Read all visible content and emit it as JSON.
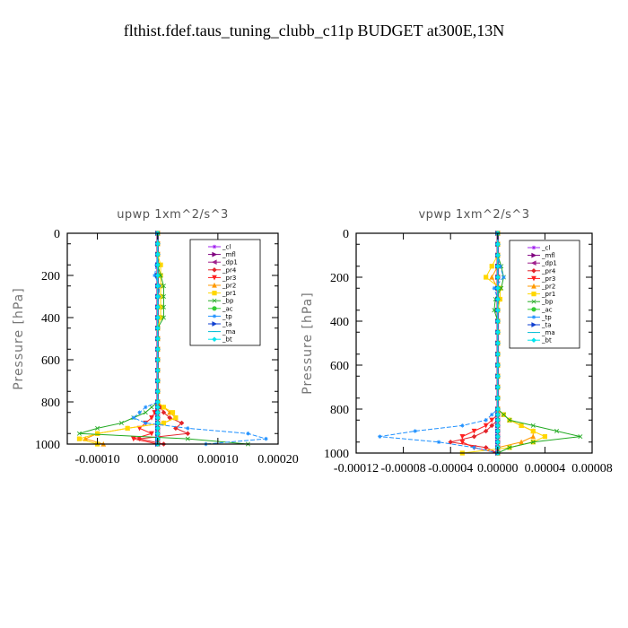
{
  "page_title": "flthist.fdef.taus_tuning_clubb_c11p  BUDGET at300E,13N",
  "ylabel": "Pressure [hPa]",
  "legend": [
    {
      "label": "_cl",
      "color": "#a020f0",
      "marker": "star"
    },
    {
      "label": "_mfl",
      "color": "#800080",
      "marker": "tri-right"
    },
    {
      "label": "_dp1",
      "color": "#a0208c",
      "marker": "tri-left"
    },
    {
      "label": "_pr4",
      "color": "#e3242b",
      "marker": "diamond"
    },
    {
      "label": "_pr3",
      "color": "#ff2020",
      "marker": "tri-down"
    },
    {
      "label": "_pr2",
      "color": "#ff9900",
      "marker": "tri-up"
    },
    {
      "label": "_pr1",
      "color": "#ffd700",
      "marker": "square"
    },
    {
      "label": "_bp",
      "color": "#22aa22",
      "marker": "x"
    },
    {
      "label": "_ac",
      "color": "#33cc33",
      "marker": "circle"
    },
    {
      "label": "_tp",
      "color": "#1e90ff",
      "marker": "star"
    },
    {
      "label": "_ta",
      "color": "#1040d0",
      "marker": "tri-right"
    },
    {
      "label": "_ma",
      "color": "#00bcd4",
      "marker": "dash"
    },
    {
      "label": "_bt",
      "color": "#00e5ee",
      "marker": "diamond"
    }
  ],
  "chart_data": [
    {
      "type": "line",
      "title": "upwp   1xm^2/s^3",
      "ylabel": "Pressure [hPa]",
      "ylim": [
        1000,
        0
      ],
      "xlim": [
        -0.00015,
        0.0002
      ],
      "x_ticks": [
        "-0.00010",
        "0.00000",
        "0.00010",
        "0.00020"
      ],
      "x_tick_values": [
        -0.0001,
        0,
        0.0001,
        0.0002
      ],
      "y_ticks": [
        "0",
        "200",
        "400",
        "600",
        "800",
        "1000"
      ],
      "y_tick_values": [
        0,
        200,
        400,
        600,
        800,
        1000
      ],
      "legend_position": "top-right",
      "levels": [
        0,
        50,
        100,
        150,
        200,
        250,
        300,
        350,
        400,
        450,
        500,
        550,
        600,
        650,
        700,
        750,
        800,
        825,
        850,
        875,
        900,
        925,
        950,
        975,
        1000
      ],
      "series": [
        {
          "name": "_cl",
          "color": "#a020f0",
          "values": [
            0,
            0,
            0,
            0,
            0,
            0,
            0,
            0,
            0,
            0,
            0,
            0,
            0,
            0,
            0,
            0,
            0,
            0,
            0,
            0,
            0,
            0,
            0,
            0,
            0
          ]
        },
        {
          "name": "_mfl",
          "color": "#800080",
          "values": [
            0,
            0,
            0,
            0,
            0,
            0,
            0,
            0,
            0,
            0,
            0,
            0,
            0,
            0,
            0,
            0,
            0,
            0,
            0,
            0,
            0,
            0,
            0,
            0,
            0
          ]
        },
        {
          "name": "_dp1",
          "color": "#a0208c",
          "values": [
            0,
            0,
            0,
            0,
            0,
            0,
            0,
            0,
            0,
            0,
            0,
            0,
            0,
            0,
            0,
            0,
            0,
            0,
            0,
            0,
            0,
            0,
            0,
            0,
            0
          ]
        },
        {
          "name": "_pr4",
          "color": "#e3242b",
          "values": [
            0,
            0,
            0,
            0,
            0,
            0,
            0,
            0,
            0,
            0,
            0,
            0,
            0,
            0,
            0,
            0,
            0,
            5e-06,
            1e-05,
            2e-05,
            4e-05,
            3e-05,
            5e-05,
            -3e-05,
            1e-05
          ]
        },
        {
          "name": "_pr3",
          "color": "#ff2020",
          "values": [
            0,
            0,
            0,
            0,
            0,
            0,
            0,
            0,
            0,
            0,
            0,
            0,
            0,
            0,
            0,
            0,
            0,
            0,
            -5e-06,
            -1e-05,
            -2e-05,
            -3e-05,
            -1e-05,
            -4e-05,
            0
          ]
        },
        {
          "name": "_pr2",
          "color": "#ff9900",
          "values": [
            0,
            0,
            0,
            0,
            0,
            0,
            0,
            0,
            0,
            0,
            0,
            0,
            0,
            0,
            0,
            0,
            0,
            1e-05,
            2e-05,
            3e-05,
            1e-05,
            -5e-05,
            -0.0001,
            -0.00012,
            -9e-05
          ]
        },
        {
          "name": "_pr1",
          "color": "#ffd700",
          "values": [
            0,
            0,
            0,
            5e-06,
            5e-06,
            5e-06,
            5e-06,
            5e-06,
            5e-06,
            0,
            0,
            0,
            0,
            0,
            0,
            0,
            0,
            1e-05,
            2.5e-05,
            3e-05,
            1e-05,
            -5e-05,
            -0.0001,
            -0.00013,
            -0.0001
          ]
        },
        {
          "name": "_bp",
          "color": "#22aa22",
          "values": [
            0,
            0,
            0,
            0,
            5e-06,
            1e-05,
            1e-05,
            1e-05,
            1e-05,
            0,
            0,
            0,
            0,
            0,
            0,
            0,
            0,
            -1e-05,
            -2e-05,
            -4e-05,
            -6e-05,
            -0.0001,
            -0.00013,
            5e-05,
            0.00015
          ]
        },
        {
          "name": "_ac",
          "color": "#33cc33",
          "values": [
            0,
            0,
            0,
            0,
            0,
            0,
            0,
            0,
            0,
            0,
            0,
            0,
            0,
            0,
            0,
            0,
            0,
            0,
            0,
            0,
            0,
            0,
            0,
            0,
            0
          ]
        },
        {
          "name": "_tp",
          "color": "#1e90ff",
          "values": [
            0,
            0,
            0,
            -2e-06,
            -5e-06,
            3e-06,
            2e-06,
            0,
            0,
            0,
            0,
            0,
            0,
            0,
            0,
            0,
            0,
            -2e-05,
            -3e-05,
            -4e-05,
            -2e-05,
            5e-05,
            0.00015,
            0.00018,
            8e-05
          ]
        },
        {
          "name": "_ta",
          "color": "#1040d0",
          "values": [
            0,
            0,
            0,
            0,
            0,
            0,
            0,
            0,
            0,
            0,
            0,
            0,
            0,
            0,
            0,
            0,
            0,
            0,
            0,
            0,
            0,
            0,
            0,
            0,
            0
          ]
        },
        {
          "name": "_ma",
          "color": "#00bcd4",
          "values": [
            0,
            0,
            0,
            0,
            0,
            0,
            0,
            0,
            0,
            0,
            0,
            0,
            0,
            0,
            0,
            0,
            0,
            0,
            0,
            0,
            0,
            0,
            0,
            0,
            0
          ]
        },
        {
          "name": "_bt",
          "color": "#00e5ee",
          "values": [
            0,
            0,
            0,
            0,
            0,
            0,
            0,
            0,
            0,
            0,
            0,
            0,
            0,
            0,
            0,
            0,
            0,
            0,
            0,
            0,
            0,
            0,
            0,
            0,
            0
          ]
        }
      ]
    },
    {
      "type": "line",
      "title": "vpwp   1xm^2/s^3",
      "ylabel": "Pressure [hPa]",
      "ylim": [
        1000,
        0
      ],
      "xlim": [
        -0.00012,
        8e-05
      ],
      "x_ticks": [
        "-0.00012",
        "-0.00008",
        "-0.00004",
        "0.00000",
        "0.00004",
        "0.00008"
      ],
      "x_tick_values": [
        -0.00012,
        -8e-05,
        -4e-05,
        0,
        4e-05,
        8e-05
      ],
      "y_ticks": [
        "0",
        "200",
        "400",
        "600",
        "800",
        "1000"
      ],
      "y_tick_values": [
        0,
        200,
        400,
        600,
        800,
        1000
      ],
      "legend_position": "top-right",
      "levels": [
        0,
        50,
        100,
        150,
        200,
        250,
        300,
        350,
        400,
        450,
        500,
        550,
        600,
        650,
        700,
        750,
        800,
        825,
        850,
        875,
        900,
        925,
        950,
        975,
        1000
      ],
      "series": [
        {
          "name": "_cl",
          "color": "#a020f0",
          "values": [
            0,
            0,
            0,
            0,
            0,
            0,
            0,
            0,
            0,
            0,
            0,
            0,
            0,
            0,
            0,
            0,
            0,
            0,
            0,
            0,
            0,
            0,
            0,
            0,
            0
          ]
        },
        {
          "name": "_mfl",
          "color": "#800080",
          "values": [
            0,
            0,
            0,
            0,
            0,
            0,
            0,
            0,
            0,
            0,
            0,
            0,
            0,
            0,
            0,
            0,
            0,
            0,
            0,
            0,
            0,
            0,
            0,
            0,
            0
          ]
        },
        {
          "name": "_dp1",
          "color": "#a0208c",
          "values": [
            0,
            0,
            0,
            0,
            0,
            0,
            0,
            0,
            0,
            0,
            0,
            0,
            0,
            0,
            0,
            0,
            0,
            0,
            0,
            0,
            0,
            0,
            0,
            0,
            0
          ]
        },
        {
          "name": "_pr4",
          "color": "#e3242b",
          "values": [
            0,
            0,
            0,
            0,
            0,
            0,
            0,
            0,
            0,
            0,
            0,
            0,
            0,
            0,
            0,
            0,
            0,
            0,
            0,
            -5e-06,
            -1e-05,
            -2e-05,
            -4e-05,
            -1e-05,
            0
          ]
        },
        {
          "name": "_pr3",
          "color": "#ff2020",
          "values": [
            0,
            0,
            0,
            0,
            0,
            0,
            0,
            0,
            0,
            0,
            0,
            0,
            0,
            0,
            0,
            0,
            0,
            0,
            -5e-06,
            -1e-05,
            -2e-05,
            -3e-05,
            -3e-05,
            -2e-05,
            0
          ]
        },
        {
          "name": "_pr2",
          "color": "#ff9900",
          "values": [
            0,
            0,
            0,
            0,
            -5e-06,
            0,
            0,
            0,
            0,
            0,
            0,
            0,
            0,
            0,
            0,
            0,
            0,
            5e-06,
            1e-05,
            2e-05,
            3e-05,
            3e-05,
            2e-05,
            0,
            0
          ]
        },
        {
          "name": "_pr1",
          "color": "#ffd700",
          "values": [
            0,
            0,
            0,
            -5e-06,
            -1e-05,
            2e-06,
            2e-06,
            0,
            0,
            0,
            0,
            0,
            0,
            0,
            0,
            0,
            0,
            5e-06,
            1e-05,
            2e-05,
            3e-05,
            4e-05,
            3e-05,
            1e-05,
            -3e-05
          ]
        },
        {
          "name": "_bp",
          "color": "#22aa22",
          "values": [
            0,
            0,
            0,
            3e-06,
            5e-06,
            3e-06,
            -2e-06,
            -3e-06,
            0,
            0,
            0,
            0,
            0,
            0,
            0,
            0,
            0,
            5e-06,
            1e-05,
            3e-05,
            5e-05,
            7e-05,
            3e-05,
            1e-05,
            0
          ]
        },
        {
          "name": "_ac",
          "color": "#33cc33",
          "values": [
            0,
            0,
            0,
            0,
            0,
            0,
            0,
            0,
            0,
            0,
            0,
            0,
            0,
            0,
            0,
            0,
            0,
            0,
            0,
            0,
            0,
            0,
            0,
            0,
            0
          ]
        },
        {
          "name": "_tp",
          "color": "#1e90ff",
          "values": [
            0,
            0,
            0,
            2e-06,
            5e-06,
            -3e-06,
            0,
            0,
            0,
            0,
            0,
            0,
            0,
            0,
            0,
            0,
            0,
            -5e-06,
            -1e-05,
            -3e-05,
            -7e-05,
            -0.0001,
            -5e-05,
            -2e-05,
            0
          ]
        },
        {
          "name": "_ta",
          "color": "#1040d0",
          "values": [
            0,
            0,
            0,
            0,
            0,
            0,
            0,
            0,
            0,
            0,
            0,
            0,
            0,
            0,
            0,
            0,
            0,
            0,
            0,
            0,
            0,
            0,
            0,
            0,
            0
          ]
        },
        {
          "name": "_ma",
          "color": "#00bcd4",
          "values": [
            0,
            0,
            0,
            0,
            0,
            0,
            0,
            0,
            0,
            0,
            0,
            0,
            0,
            0,
            0,
            0,
            0,
            0,
            0,
            0,
            0,
            0,
            0,
            0,
            0
          ]
        },
        {
          "name": "_bt",
          "color": "#00e5ee",
          "values": [
            0,
            0,
            0,
            0,
            0,
            0,
            0,
            0,
            0,
            0,
            0,
            0,
            0,
            0,
            0,
            0,
            0,
            0,
            0,
            0,
            0,
            0,
            0,
            0,
            0
          ]
        }
      ]
    }
  ]
}
